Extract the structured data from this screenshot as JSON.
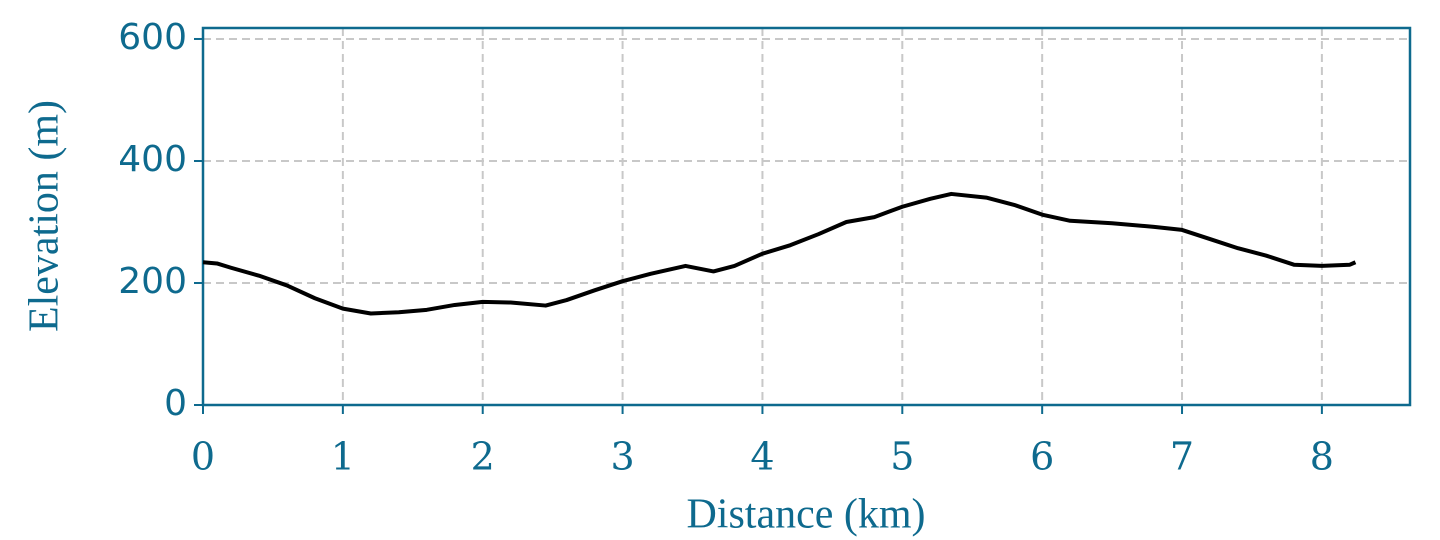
{
  "chart_data": {
    "type": "line",
    "xlabel": "Distance (km)",
    "ylabel": "Elevation (m)",
    "x": [
      0,
      0.1,
      0.2,
      0.4,
      0.6,
      0.8,
      1.0,
      1.2,
      1.4,
      1.6,
      1.8,
      2.0,
      2.2,
      2.45,
      2.6,
      2.8,
      3.0,
      3.2,
      3.45,
      3.65,
      3.8,
      4.0,
      4.2,
      4.4,
      4.6,
      4.8,
      5.0,
      5.2,
      5.35,
      5.6,
      5.8,
      6.0,
      6.2,
      6.5,
      6.8,
      7.0,
      7.2,
      7.4,
      7.6,
      7.8,
      8.0,
      8.2,
      8.24
    ],
    "series": [
      {
        "color": "#000000",
        "values": [
          234,
          232,
          225,
          212,
          196,
          175,
          158,
          150,
          152,
          156,
          164,
          169,
          168,
          163,
          172,
          188,
          203,
          215,
          228,
          219,
          228,
          248,
          262,
          280,
          300,
          308,
          325,
          338,
          346,
          340,
          328,
          312,
          302,
          298,
          292,
          287,
          272,
          257,
          245,
          230,
          228,
          230,
          234
        ]
      }
    ],
    "xlim": [
      0,
      8.63
    ],
    "ylim": [
      0,
      618
    ],
    "xticks": [
      0,
      1,
      2,
      3,
      4,
      5,
      6,
      7,
      8
    ],
    "yticks": [
      0,
      200,
      400,
      600
    ],
    "grid": true,
    "axis_color": "#0e6a8e"
  }
}
